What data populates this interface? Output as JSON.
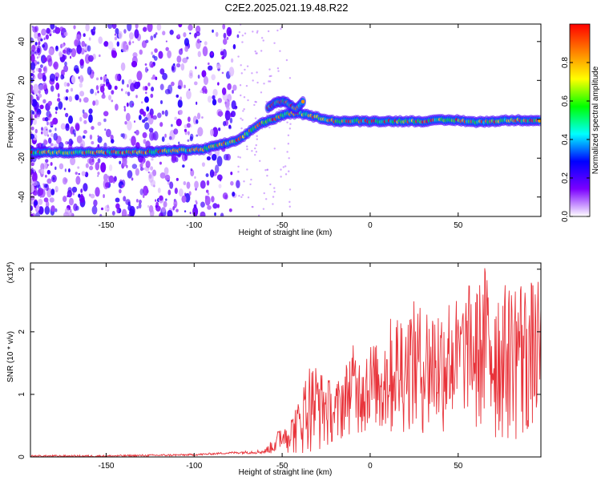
{
  "title": "C2E2.2025.021.19.48.R22",
  "chart_data": [
    {
      "type": "heatmap",
      "title": "C2E2.2025.021.19.48.R22",
      "xlabel": "Height of straight line (km)",
      "ylabel": "Frequency (Hz)",
      "xlim": [
        -193,
        97
      ],
      "ylim": [
        -50,
        49
      ],
      "xticks": [
        -150,
        -100,
        -50,
        0,
        50
      ],
      "yticks": [
        -40,
        -20,
        0,
        20,
        40
      ],
      "colorbar": {
        "label": "Normalized spectral amplitude",
        "range": [
          0,
          1
        ],
        "ticks": [
          0.0,
          0.2,
          0.4,
          0.6,
          0.8
        ],
        "tick_labels": [
          "0.0",
          "0.2",
          "0.4",
          "0.6",
          "0.8"
        ],
        "colormap": [
          "#ffffff",
          "#7b00ff",
          "#0000ff",
          "#00ffff",
          "#00ff00",
          "#ffff00",
          "#ff8000",
          "#ff0000"
        ]
      },
      "ridge": {
        "x": [
          -193,
          -170,
          -150,
          -130,
          -110,
          -95,
          -85,
          -75,
          -68,
          -62,
          -55,
          -50,
          -45,
          -40,
          -35,
          -30,
          -25,
          -20,
          -10,
          0,
          10,
          20,
          30,
          40,
          50,
          60,
          70,
          80,
          90,
          97
        ],
        "y": [
          -17,
          -17,
          -17,
          -17,
          -16,
          -15.5,
          -13,
          -11,
          -6,
          -2,
          0,
          2,
          3,
          3,
          2,
          1,
          0,
          -1,
          -1,
          -1,
          -1,
          -1,
          -1,
          -0.5,
          -0.5,
          -1.5,
          -1,
          -0.5,
          -0.5,
          -0.5
        ]
      },
      "upper_branch": {
        "x": [
          -58,
          -53,
          -48,
          -45,
          -42,
          -38
        ],
        "y": [
          6,
          9,
          9,
          7,
          5,
          9
        ]
      }
    },
    {
      "type": "line",
      "xlabel": "Height of straight line (km)",
      "ylabel": "SNR (10 * v/v)",
      "y_multiplier": "(x10",
      "y_multiplier_exp": "4",
      "xlim": [
        -193,
        97
      ],
      "ylim": [
        0,
        3.1
      ],
      "xticks": [
        -150,
        -100,
        -50,
        0,
        50
      ],
      "yticks": [
        0,
        1,
        2,
        3
      ],
      "color": "#e8333a",
      "envelope": {
        "x": [
          -193,
          -150,
          -100,
          -80,
          -70,
          -60,
          -55,
          -50,
          -45,
          -40,
          -35,
          -30,
          -25,
          -20,
          -15,
          -10,
          -5,
          0,
          5,
          10,
          15,
          20,
          25,
          30,
          35,
          40,
          45,
          50,
          55,
          60,
          65,
          70,
          75,
          80,
          85,
          90,
          97
        ],
        "y_min": [
          0.0,
          0.0,
          0.02,
          0.05,
          0.05,
          0.05,
          0.05,
          0.1,
          0.05,
          0.05,
          0.05,
          0.1,
          0.15,
          0.2,
          0.3,
          0.4,
          0.35,
          0.4,
          0.3,
          0.4,
          0.3,
          0.4,
          0.45,
          0.3,
          0.4,
          0.35,
          0.4,
          0.3,
          0.4,
          0.3,
          0.35,
          0.2,
          0.3,
          0.2,
          0.3,
          0.2,
          0.3
        ],
        "y_max": [
          0.03,
          0.03,
          0.05,
          0.08,
          0.1,
          0.12,
          0.3,
          0.55,
          0.7,
          0.95,
          1.6,
          1.5,
          1.3,
          1.15,
          1.4,
          1.8,
          1.7,
          1.9,
          1.8,
          2.2,
          2.3,
          2.4,
          2.5,
          2.4,
          2.5,
          2.4,
          2.7,
          2.5,
          2.8,
          2.7,
          3.1,
          2.9,
          2.7,
          2.9,
          3.0,
          2.85,
          2.8
        ]
      }
    }
  ]
}
